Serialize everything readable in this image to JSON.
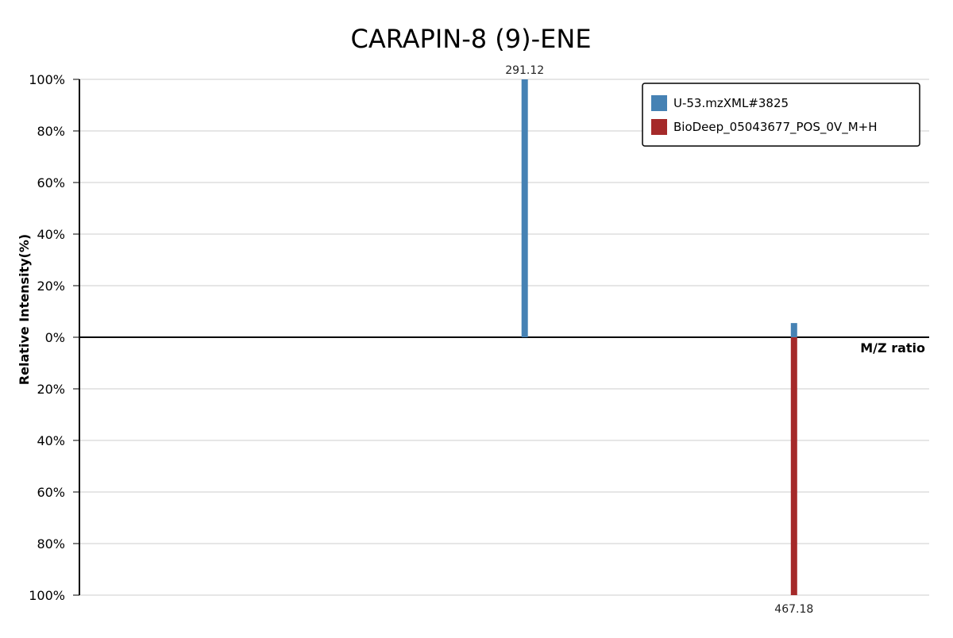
{
  "chart_data": {
    "type": "bar",
    "title": "CARAPIN-8 (9)-ENE",
    "xlabel": "M/Z ratio",
    "ylabel": "Relative Intensity(%)",
    "y_ticks_top": [
      "100%",
      "80%",
      "60%",
      "40%",
      "20%",
      "0%"
    ],
    "y_ticks_bottom": [
      "20%",
      "40%",
      "60%",
      "80%",
      "100%"
    ],
    "ylim": [
      -100,
      100
    ],
    "grid": true,
    "legend_position": "top-right",
    "series": [
      {
        "name": "U-53.mzXML#3825",
        "color": "#4682B4",
        "direction": "up",
        "peaks": [
          {
            "mz": 291.12,
            "intensity": 100,
            "label": "291.12"
          },
          {
            "mz": 467.18,
            "intensity": 5.5
          }
        ]
      },
      {
        "name": "BioDeep_05043677_POS_0V_M+H",
        "color": "#A52A2A",
        "direction": "down",
        "peaks": [
          {
            "mz": 467.18,
            "intensity": 100,
            "label": "467.18"
          }
        ]
      }
    ]
  }
}
